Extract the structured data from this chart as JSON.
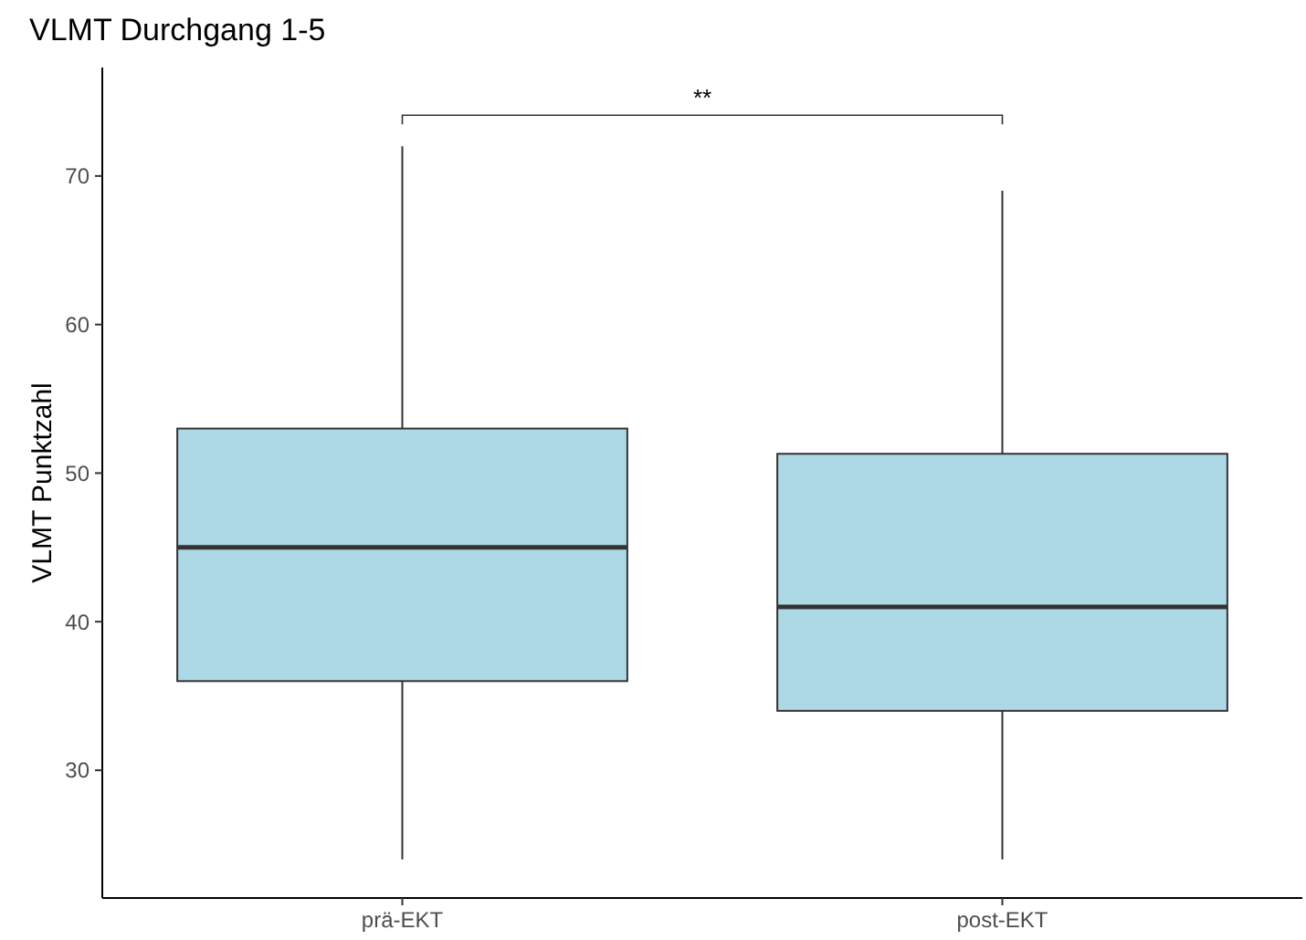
{
  "chart_data": {
    "type": "box",
    "title": "VLMT Durchgang 1-5",
    "ylabel": "VLMT Punktzahl",
    "categories": [
      "prä-EKT",
      "post-EKT"
    ],
    "boxes": [
      {
        "low": 24,
        "q1": 36,
        "median": 45,
        "q3": 53,
        "high": 72
      },
      {
        "low": 24,
        "q1": 34,
        "median": 41,
        "q3": 51.3,
        "high": 69
      }
    ],
    "color": "#add8e6",
    "ylim": [
      21.4,
      77.3
    ],
    "yticks": [
      30,
      40,
      50,
      60,
      70
    ],
    "grid": false,
    "annotations": [
      "**"
    ]
  }
}
